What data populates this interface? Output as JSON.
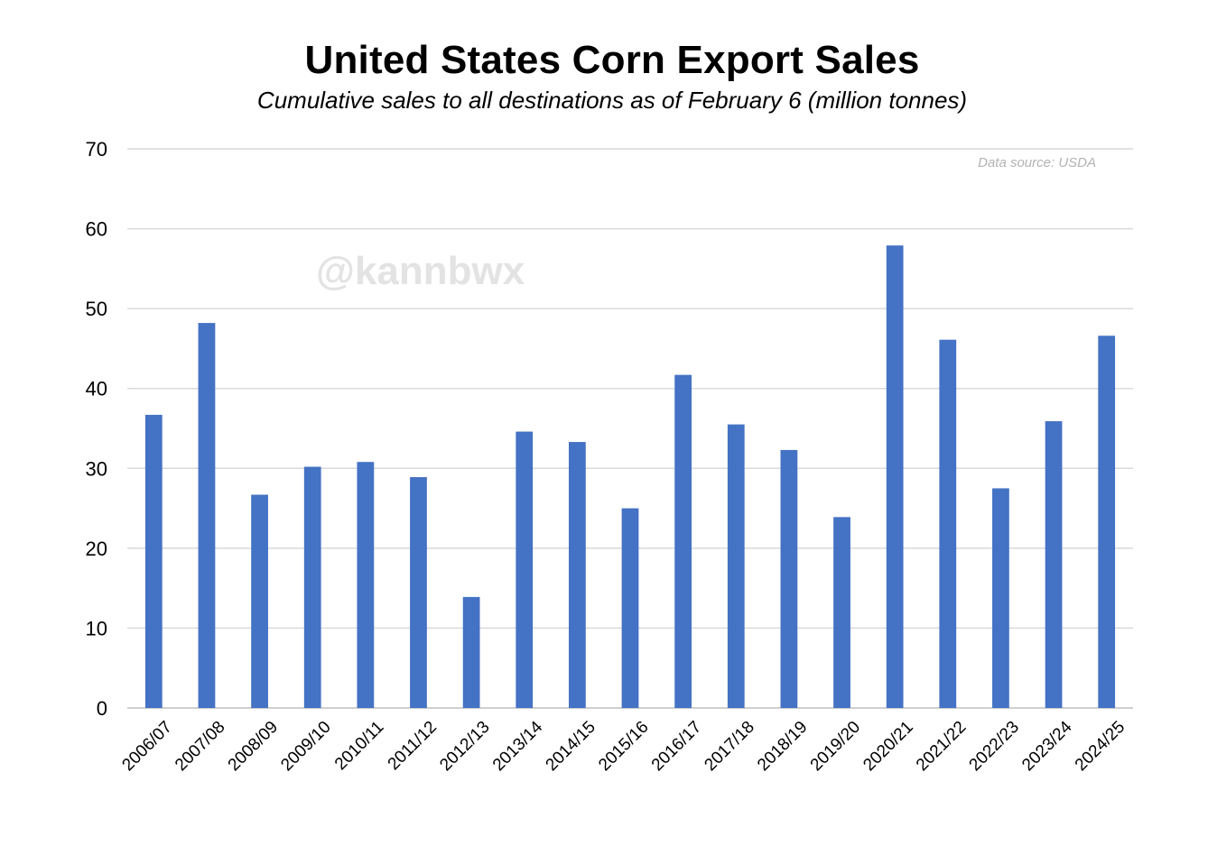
{
  "chart_data": {
    "type": "bar",
    "title": "United States Corn Export Sales",
    "subtitle": "Cumulative sales to all destinations as of February 6 (million tonnes)",
    "source_note": "Data source: USDA",
    "watermark": "@kannbwx",
    "xlabel": "",
    "ylabel": "",
    "ylim": [
      0,
      70
    ],
    "yticks": [
      0,
      10,
      20,
      30,
      40,
      50,
      60,
      70
    ],
    "grid": true,
    "bar_color": "#4472c4",
    "categories": [
      "2006/07",
      "2007/08",
      "2008/09",
      "2009/10",
      "2010/11",
      "2011/12",
      "2012/13",
      "2013/14",
      "2014/15",
      "2015/16",
      "2016/17",
      "2017/18",
      "2018/19",
      "2019/20",
      "2020/21",
      "2021/22",
      "2022/23",
      "2023/24",
      "2024/25"
    ],
    "values": [
      36.7,
      48.2,
      26.7,
      30.2,
      30.8,
      28.9,
      13.9,
      34.6,
      33.3,
      25.0,
      41.7,
      35.5,
      32.3,
      23.9,
      57.9,
      46.1,
      27.5,
      35.9,
      46.6
    ]
  }
}
